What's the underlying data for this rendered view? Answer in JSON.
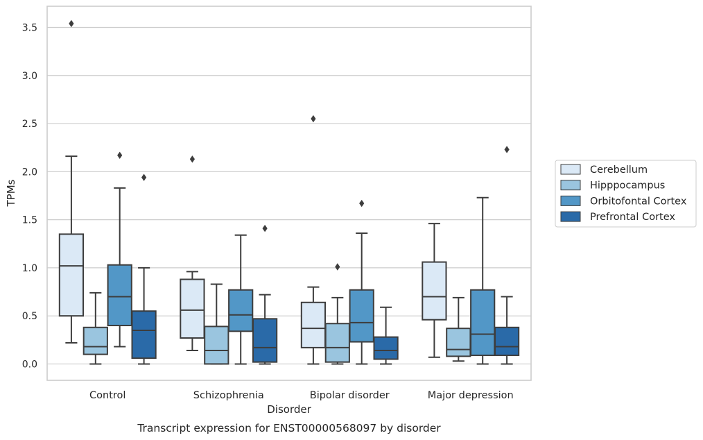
{
  "chart_data": {
    "type": "box",
    "title": "",
    "caption": "Transcript expression for ENST00000568097 by disorder",
    "xlabel": "Disorder",
    "ylabel": "TPMs",
    "ylim": [
      -0.17,
      3.72
    ],
    "yticks": [
      "0.0",
      "0.5",
      "1.0",
      "1.5",
      "2.0",
      "2.5",
      "3.0",
      "3.5"
    ],
    "grid": true,
    "legend_position": "right",
    "categories": [
      "Control",
      "Schizophrenia",
      "Bipolar disorder",
      "Major depression"
    ],
    "series": [
      {
        "name": "Cerebellum",
        "color": "#dbe9f6",
        "boxes": [
          {
            "whisker_low": 0.22,
            "q1": 0.5,
            "median": 1.02,
            "q3": 1.35,
            "whisker_high": 2.16,
            "outliers": [
              3.54
            ]
          },
          {
            "whisker_low": 0.14,
            "q1": 0.27,
            "median": 0.56,
            "q3": 0.88,
            "whisker_high": 0.96,
            "outliers": [
              2.13
            ]
          },
          {
            "whisker_low": 0.0,
            "q1": 0.17,
            "median": 0.37,
            "q3": 0.64,
            "whisker_high": 0.8,
            "outliers": [
              2.55
            ]
          },
          {
            "whisker_low": 0.07,
            "q1": 0.46,
            "median": 0.7,
            "q3": 1.06,
            "whisker_high": 1.46,
            "outliers": []
          }
        ]
      },
      {
        "name": "Hipppocampus",
        "color": "#9ac5df",
        "boxes": [
          {
            "whisker_low": 0.0,
            "q1": 0.1,
            "median": 0.18,
            "q3": 0.38,
            "whisker_high": 0.74,
            "outliers": []
          },
          {
            "whisker_low": 0.0,
            "q1": 0.0,
            "median": 0.14,
            "q3": 0.39,
            "whisker_high": 0.83,
            "outliers": []
          },
          {
            "whisker_low": 0.0,
            "q1": 0.02,
            "median": 0.17,
            "q3": 0.42,
            "whisker_high": 0.69,
            "outliers": [
              1.01
            ]
          },
          {
            "whisker_low": 0.03,
            "q1": 0.08,
            "median": 0.15,
            "q3": 0.37,
            "whisker_high": 0.69,
            "outliers": []
          }
        ]
      },
      {
        "name": "Orbitofontal Cortex",
        "color": "#5297c7",
        "boxes": [
          {
            "whisker_low": 0.18,
            "q1": 0.4,
            "median": 0.7,
            "q3": 1.03,
            "whisker_high": 1.83,
            "outliers": [
              2.17
            ]
          },
          {
            "whisker_low": 0.0,
            "q1": 0.34,
            "median": 0.51,
            "q3": 0.77,
            "whisker_high": 1.34,
            "outliers": []
          },
          {
            "whisker_low": 0.0,
            "q1": 0.23,
            "median": 0.43,
            "q3": 0.77,
            "whisker_high": 1.36,
            "outliers": [
              1.67
            ]
          },
          {
            "whisker_low": 0.0,
            "q1": 0.09,
            "median": 0.31,
            "q3": 0.77,
            "whisker_high": 1.73,
            "outliers": []
          }
        ]
      },
      {
        "name": "Prefrontal Cortex",
        "color": "#2a6aa8",
        "boxes": [
          {
            "whisker_low": 0.0,
            "q1": 0.06,
            "median": 0.35,
            "q3": 0.55,
            "whisker_high": 1.0,
            "outliers": [
              1.94
            ]
          },
          {
            "whisker_low": 0.0,
            "q1": 0.02,
            "median": 0.17,
            "q3": 0.47,
            "whisker_high": 0.72,
            "outliers": [
              1.41
            ]
          },
          {
            "whisker_low": 0.0,
            "q1": 0.05,
            "median": 0.14,
            "q3": 0.28,
            "whisker_high": 0.59,
            "outliers": []
          },
          {
            "whisker_low": 0.0,
            "q1": 0.09,
            "median": 0.18,
            "q3": 0.38,
            "whisker_high": 0.7,
            "outliers": [
              2.23
            ]
          }
        ]
      }
    ]
  }
}
